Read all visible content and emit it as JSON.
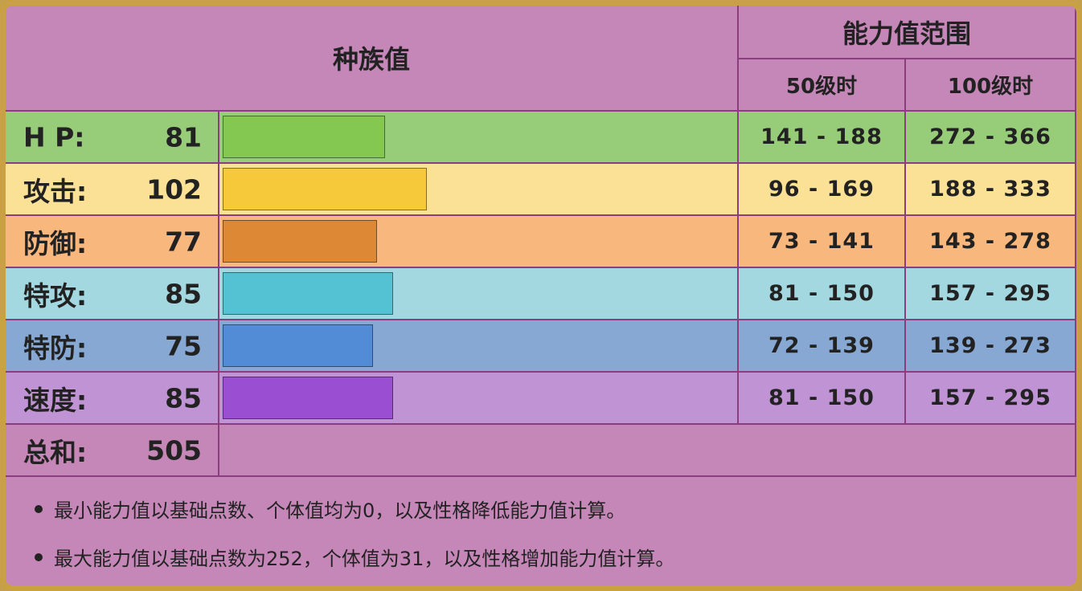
{
  "header": {
    "base_stats": "种族值",
    "stat_range": "能力值范围",
    "level50": "50级时",
    "level100": "100级时"
  },
  "stats": [
    {
      "label": "H P:",
      "value": "81",
      "base": 81,
      "lv50": "141 - 188",
      "lv100": "272 - 366",
      "row_color": "#97cc79",
      "bar_color": "#84c851"
    },
    {
      "label": "攻击:",
      "value": "102",
      "base": 102,
      "lv50": "96 - 169",
      "lv100": "188 - 333",
      "row_color": "#fbe195",
      "bar_color": "#f6c93b"
    },
    {
      "label": "防御:",
      "value": "77",
      "base": 77,
      "lv50": "73 - 141",
      "lv100": "143 - 278",
      "row_color": "#f8b87d",
      "bar_color": "#dd8834"
    },
    {
      "label": "特攻:",
      "value": "85",
      "base": 85,
      "lv50": "81 - 150",
      "lv100": "157 - 295",
      "row_color": "#a3d8e0",
      "bar_color": "#55c2d3"
    },
    {
      "label": "特防:",
      "value": "75",
      "base": 75,
      "lv50": "72 - 139",
      "lv100": "139 - 273",
      "row_color": "#87a8d3",
      "bar_color": "#528cd6"
    },
    {
      "label": "速度:",
      "value": "85",
      "base": 85,
      "lv50": "81 - 150",
      "lv100": "157 - 295",
      "row_color": "#c094d4",
      "bar_color": "#9a4fd2"
    }
  ],
  "total": {
    "label": "总和:",
    "value": "505"
  },
  "notes": [
    "最小能力值以基础点数、个体值均为0，以及性格降低能力值计算。",
    "最大能力值以基础点数为252，个体值为31，以及性格增加能力值计算。"
  ],
  "colors": {
    "background": "#c587b8",
    "border": "#c9a043",
    "gridline": "#8a3e7e"
  }
}
